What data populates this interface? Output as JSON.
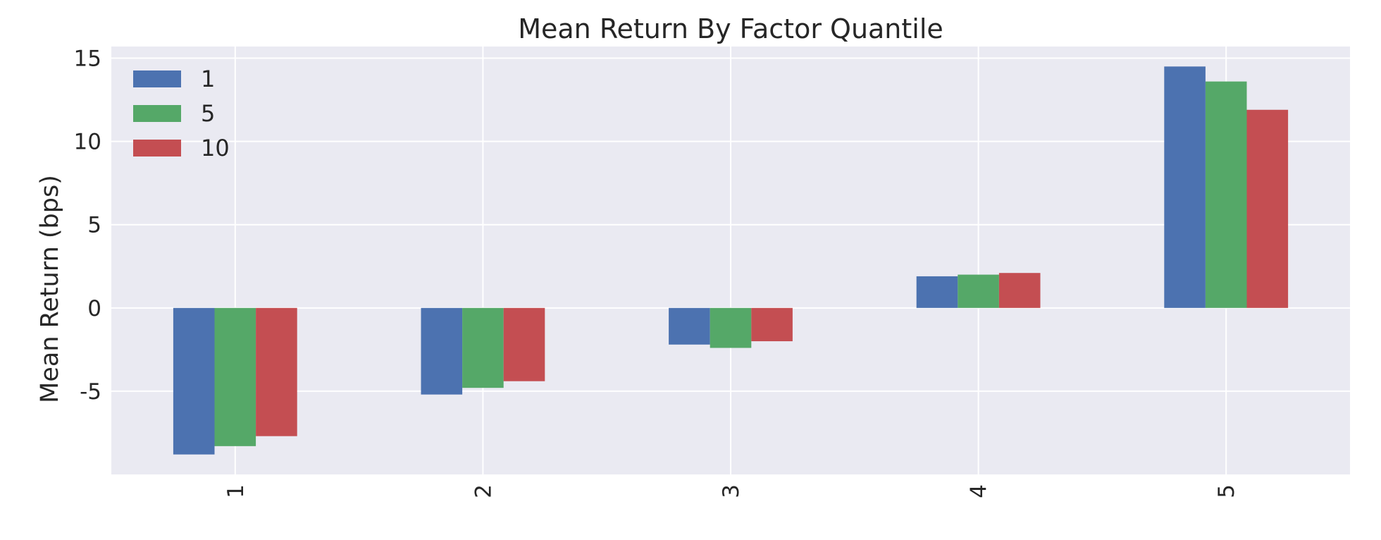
{
  "chart_data": {
    "type": "bar",
    "title": "Mean Return By Factor Quantile",
    "xlabel": "",
    "ylabel": "Mean Return (bps)",
    "categories": [
      "1",
      "2",
      "3",
      "4",
      "5"
    ],
    "series": [
      {
        "name": "1",
        "color": "#4c72b0",
        "values": [
          -8.8,
          -5.2,
          -2.2,
          1.9,
          14.5
        ]
      },
      {
        "name": "5",
        "color": "#55a868",
        "values": [
          -8.3,
          -4.8,
          -2.4,
          2.0,
          13.6
        ]
      },
      {
        "name": "10",
        "color": "#c44e52",
        "values": [
          -7.7,
          -4.4,
          -2.0,
          2.1,
          11.9
        ]
      }
    ],
    "ylim": [
      -10,
      15.7
    ],
    "yticks": [
      15,
      10,
      5,
      0,
      -5
    ],
    "ytick_labels": [
      "15",
      "10",
      "5",
      "0",
      "-5"
    ],
    "grid": true,
    "legend_position": "top-left",
    "background_color": "#eaeaf2",
    "grid_color": "#ffffff"
  }
}
